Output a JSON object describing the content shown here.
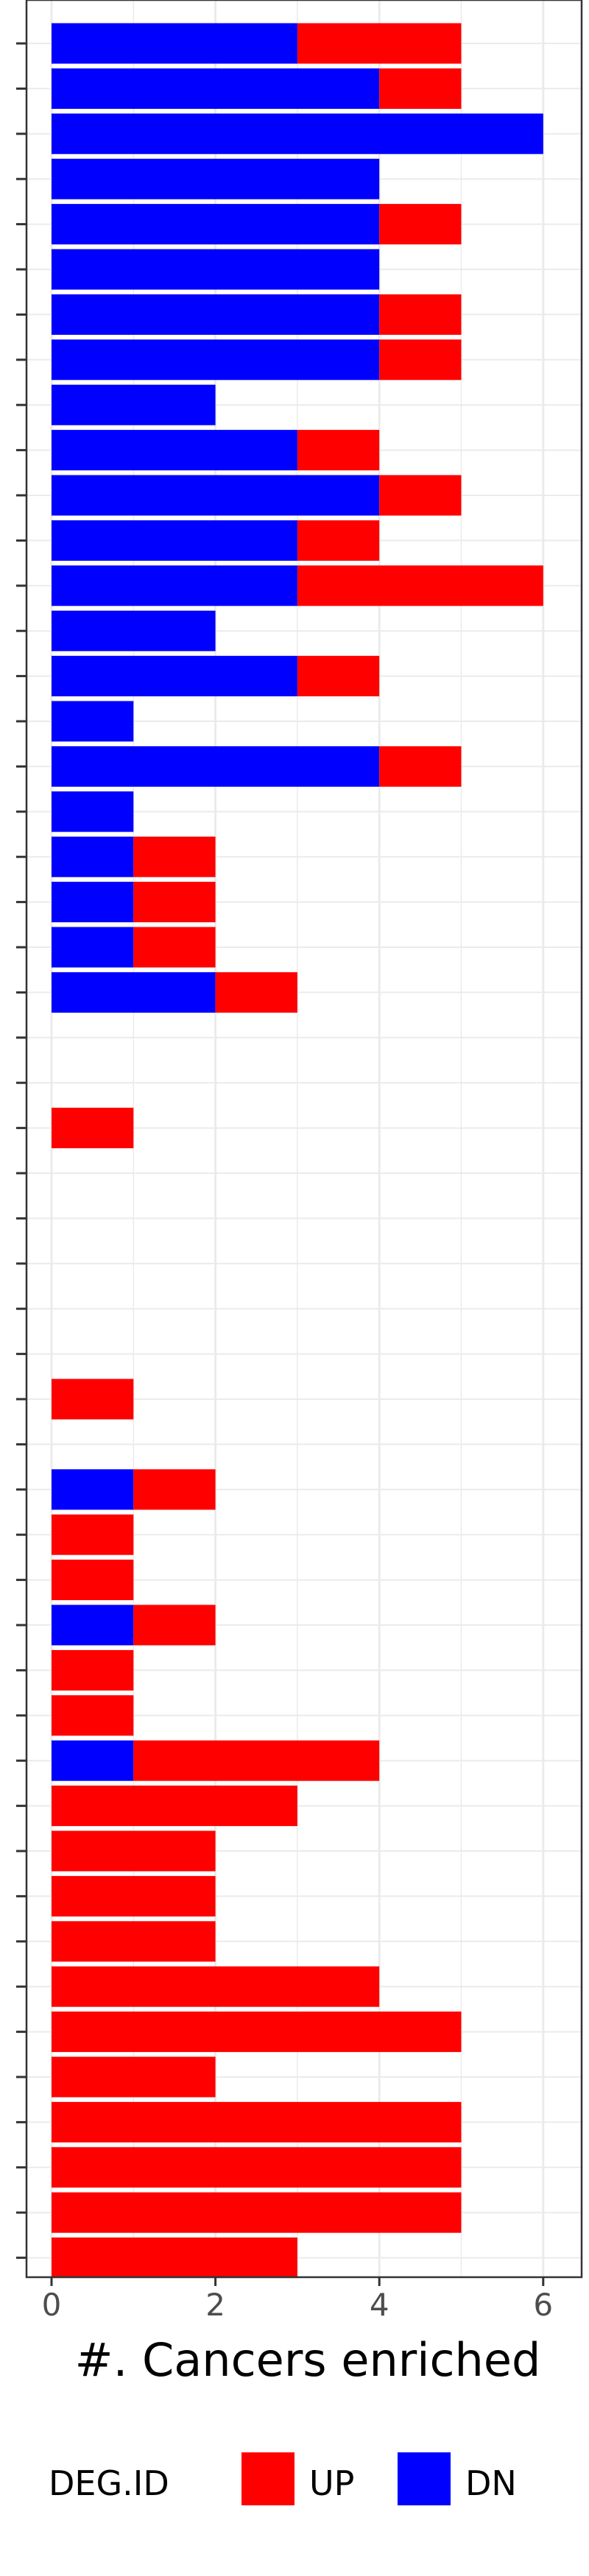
{
  "chart_data": {
    "type": "bar",
    "orientation": "horizontal",
    "stacked": true,
    "xlabel": "#. Cancers enriched",
    "ylabel": "",
    "xlim": [
      0,
      6.2
    ],
    "x_ticks": [
      0,
      2,
      4,
      6
    ],
    "grid": true,
    "legend_position": "bottom",
    "legend_title": "DEG.ID",
    "series": [
      {
        "name": "UP",
        "color": "#ff0000",
        "values": [
          2,
          1,
          0,
          0,
          1,
          0,
          1,
          1,
          0,
          1,
          1,
          1,
          3,
          0,
          1,
          0,
          1,
          0,
          1,
          1,
          1,
          1,
          0,
          0,
          1,
          0,
          0,
          0,
          0,
          0,
          1,
          0,
          1,
          1,
          1,
          1,
          1,
          1,
          3,
          3,
          2,
          2,
          2,
          4,
          5,
          2,
          5,
          5,
          5,
          3
        ]
      },
      {
        "name": "DN",
        "color": "#0000ff",
        "values": [
          3,
          4,
          6,
          4,
          4,
          4,
          4,
          4,
          2,
          3,
          4,
          3,
          3,
          2,
          3,
          1,
          4,
          1,
          1,
          1,
          1,
          2,
          0,
          0,
          0,
          0,
          0,
          0,
          0,
          0,
          0,
          0,
          1,
          0,
          0,
          1,
          0,
          0,
          1,
          0,
          0,
          0,
          0,
          0,
          0,
          0,
          0,
          0,
          0,
          0
        ]
      }
    ]
  }
}
